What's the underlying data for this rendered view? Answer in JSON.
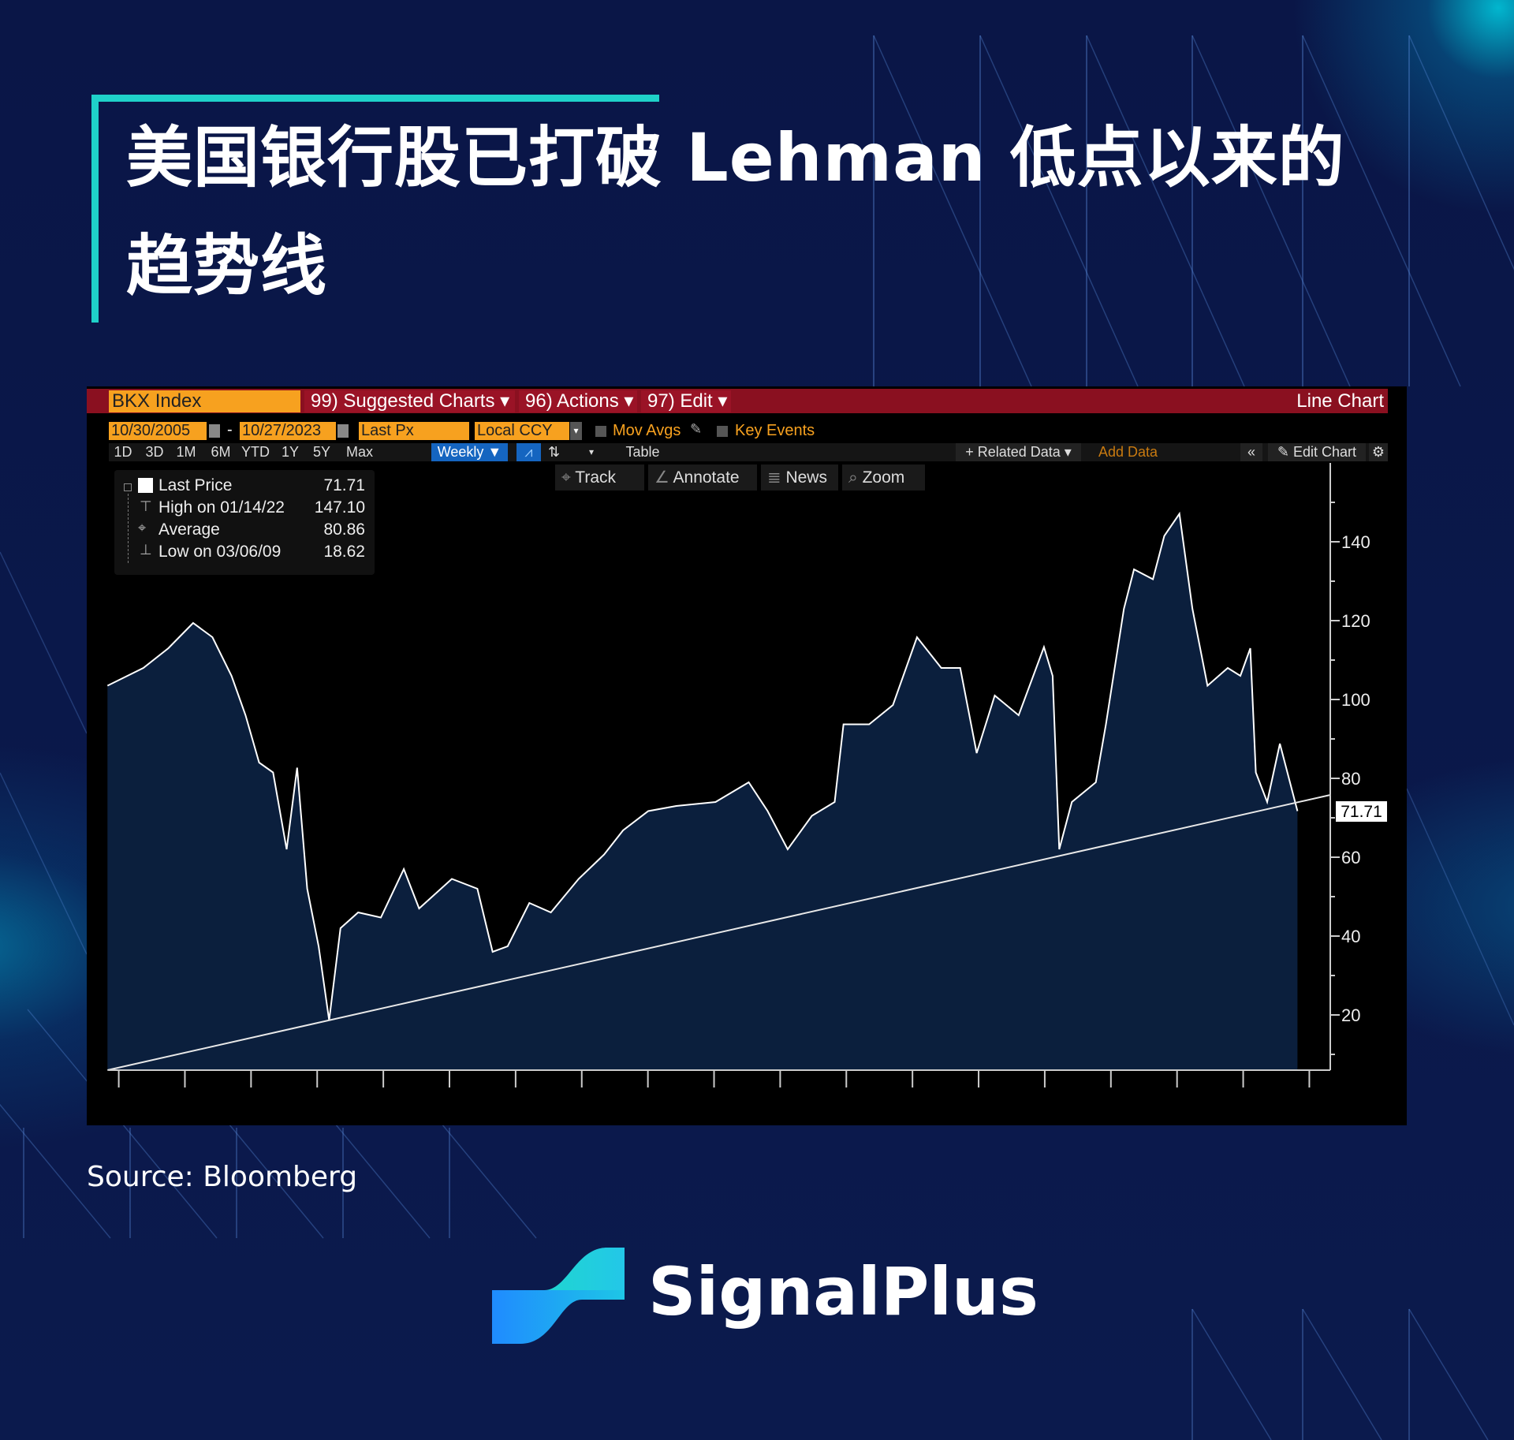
{
  "header": {
    "title_line1": "美国银行股已打破 Lehman 低点以来的",
    "title_line2": "趋势线",
    "accent": "#1fd1c9"
  },
  "terminal": {
    "ticker": "BKX Index",
    "menu": [
      {
        "label": "99) Suggested Charts ▾"
      },
      {
        "label": "96) Actions ▾"
      },
      {
        "label": "97) Edit ▾"
      }
    ],
    "chart_type_label": "Line Chart",
    "start_date": "10/30/2005",
    "end_date": "10/27/2023",
    "separator": "-",
    "field": "Last Px",
    "currency": "Local CCY",
    "mov_avgs": "Mov Avgs",
    "key_events": "Key Events",
    "ranges": [
      "1D",
      "3D",
      "1M",
      "6M",
      "YTD",
      "1Y",
      "5Y",
      "Max"
    ],
    "frequency": "Weekly ▼",
    "table_label": "Table",
    "related_data": "+ Related Data ▾",
    "add_data_placeholder": "Add Data",
    "collapse": "«",
    "edit_chart": "Edit Chart",
    "tools": [
      {
        "label": "Track",
        "icon": "crosshair-icon",
        "glyph": "⌖"
      },
      {
        "label": "Annotate",
        "icon": "pencil-icon",
        "glyph": "∠"
      },
      {
        "label": "News",
        "icon": "news-icon",
        "glyph": "≣"
      },
      {
        "label": "Zoom",
        "icon": "magnifier-icon",
        "glyph": "⌕"
      }
    ],
    "legend": [
      {
        "label": "Last Price",
        "value": "71.71"
      },
      {
        "label": "High on 01/14/22",
        "value": "147.10"
      },
      {
        "label": "Average",
        "value": "80.86"
      },
      {
        "label": "Low on 03/06/09",
        "value": "18.62"
      }
    ],
    "colors": {
      "toolbar_red": "#8a1020",
      "input_orange": "#f7a11f",
      "highlight_blue": "#1565c0",
      "area_fill": "#0b1f3d",
      "line": "#ffffff"
    }
  },
  "chart_data": {
    "type": "area",
    "title": "",
    "xlabel": "",
    "ylabel": "",
    "ylim": [
      6,
      160
    ],
    "yticks": [
      20,
      40,
      60,
      80,
      100,
      120,
      140
    ],
    "xlim": [
      "2005-10-30",
      "2024-05-01"
    ],
    "x_tick_interval": "yearly (unlabeled)",
    "grid": false,
    "last_value_label": "71.71",
    "series": [
      {
        "values": [
          [
            "2005-10-30",
            103.5
          ],
          [
            "2006-05-15",
            108
          ],
          [
            "2006-10-01",
            113
          ],
          [
            "2007-02-16",
            119.4
          ],
          [
            "2007-06-01",
            115.8
          ],
          [
            "2007-09-15",
            106
          ],
          [
            "2007-12-01",
            96
          ],
          [
            "2008-02-15",
            84
          ],
          [
            "2008-05-01",
            81.5
          ],
          [
            "2008-07-15",
            62
          ],
          [
            "2008-09-12",
            82.7
          ],
          [
            "2008-11-07",
            52
          ],
          [
            "2009-01-09",
            37.4
          ],
          [
            "2009-03-06",
            18.62
          ],
          [
            "2009-05-08",
            42
          ],
          [
            "2009-08-14",
            46
          ],
          [
            "2009-12-18",
            44.7
          ],
          [
            "2010-04-23",
            57
          ],
          [
            "2010-07-16",
            47
          ],
          [
            "2011-01-14",
            54.5
          ],
          [
            "2011-06-03",
            52
          ],
          [
            "2011-08-26",
            36
          ],
          [
            "2011-11-18",
            37.4
          ],
          [
            "2012-03-16",
            48.4
          ],
          [
            "2012-07-13",
            46
          ],
          [
            "2012-12-14",
            54.5
          ],
          [
            "2013-05-03",
            60.7
          ],
          [
            "2013-08-16",
            66.8
          ],
          [
            "2014-01-03",
            71.7
          ],
          [
            "2014-06-06",
            73
          ],
          [
            "2015-01-09",
            74
          ],
          [
            "2015-07-10",
            79
          ],
          [
            "2015-10-23",
            71.7
          ],
          [
            "2016-02-12",
            62
          ],
          [
            "2016-06-24",
            70.5
          ],
          [
            "2016-10-28",
            74
          ],
          [
            "2016-12-16",
            93.7
          ],
          [
            "2017-05-05",
            93.7
          ],
          [
            "2017-09-15",
            98.6
          ],
          [
            "2018-01-26",
            115.8
          ],
          [
            "2018-06-08",
            108
          ],
          [
            "2018-09-21",
            108
          ],
          [
            "2018-12-21",
            86.4
          ],
          [
            "2019-03-29",
            101
          ],
          [
            "2019-08-09",
            96
          ],
          [
            "2019-12-27",
            113.3
          ],
          [
            "2020-02-14",
            106
          ],
          [
            "2020-03-20",
            62
          ],
          [
            "2020-05-29",
            74
          ],
          [
            "2020-10-09",
            79
          ],
          [
            "2020-12-04",
            93.7
          ],
          [
            "2021-03-12",
            123
          ],
          [
            "2021-05-07",
            133
          ],
          [
            "2021-08-20",
            130.5
          ],
          [
            "2021-10-22",
            141.5
          ],
          [
            "2022-01-14",
            147.1
          ],
          [
            "2022-03-25",
            123
          ],
          [
            "2022-06-17",
            103.5
          ],
          [
            "2022-10-07",
            108
          ],
          [
            "2022-12-16",
            106
          ],
          [
            "2023-02-10",
            113
          ],
          [
            "2023-03-10",
            81.5
          ],
          [
            "2023-05-12",
            74
          ],
          [
            "2023-07-21",
            88.8
          ],
          [
            "2023-10-27",
            71.71
          ]
        ]
      }
    ],
    "trendline": {
      "from": [
        "2005-10-30",
        6
      ],
      "to": [
        "2024-04-26",
        75.8
      ]
    }
  },
  "footer": {
    "source": "Source: Bloomberg",
    "brand": "SignalPlus"
  }
}
